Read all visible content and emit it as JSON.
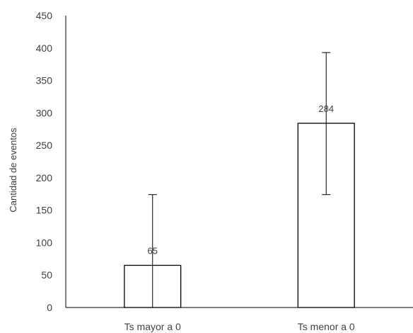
{
  "chart_data": {
    "type": "bar",
    "categories": [
      "Ts mayor a 0",
      "Ts menor a 0"
    ],
    "values": [
      65,
      284
    ],
    "error_bars": [
      {
        "low": 0,
        "high": 174
      },
      {
        "low": 174,
        "high": 393
      }
    ],
    "data_labels": [
      "65",
      "284"
    ],
    "ylabel": "Cantidad de eventos",
    "ylim": [
      0,
      450
    ],
    "yticks": [
      0,
      50,
      100,
      150,
      200,
      250,
      300,
      350,
      400,
      450
    ],
    "grid": false,
    "colors": {
      "bar_fill": "#ffffff",
      "bar_stroke": "#000000",
      "axis": "#000000",
      "text": "#404040"
    }
  }
}
